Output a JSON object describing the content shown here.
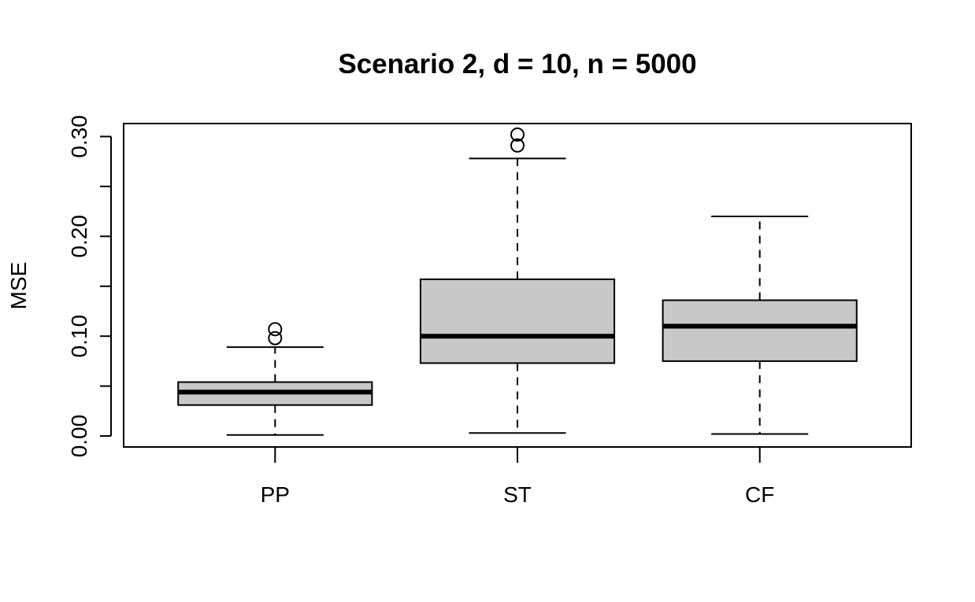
{
  "chart_data": {
    "type": "boxplot",
    "title": "Scenario 2, d = 10, n = 5000",
    "xlabel": "",
    "ylabel": "MSE",
    "ylim": [
      -0.011,
      0.313
    ],
    "yticks": [
      0.0,
      0.05,
      0.1,
      0.15,
      0.2,
      0.25,
      0.3
    ],
    "ytick_labels": [
      "0.00",
      "",
      "0.10",
      "",
      "0.20",
      "",
      "0.30"
    ],
    "categories": [
      "PP",
      "ST",
      "CF"
    ],
    "boxes": [
      {
        "name": "PP",
        "whisker_low": 0.001,
        "q1": 0.031,
        "median": 0.044,
        "q3": 0.054,
        "whisker_high": 0.089,
        "outliers": [
          0.107,
          0.098
        ]
      },
      {
        "name": "ST",
        "whisker_low": 0.003,
        "q1": 0.073,
        "median": 0.1,
        "q3": 0.157,
        "whisker_high": 0.278,
        "outliers": [
          0.302,
          0.291
        ]
      },
      {
        "name": "CF",
        "whisker_low": 0.002,
        "q1": 0.075,
        "median": 0.11,
        "q3": 0.136,
        "whisker_high": 0.22,
        "outliers": []
      }
    ],
    "box_fill": "#c8c8c8",
    "line_color": "#000000",
    "grid": false
  }
}
